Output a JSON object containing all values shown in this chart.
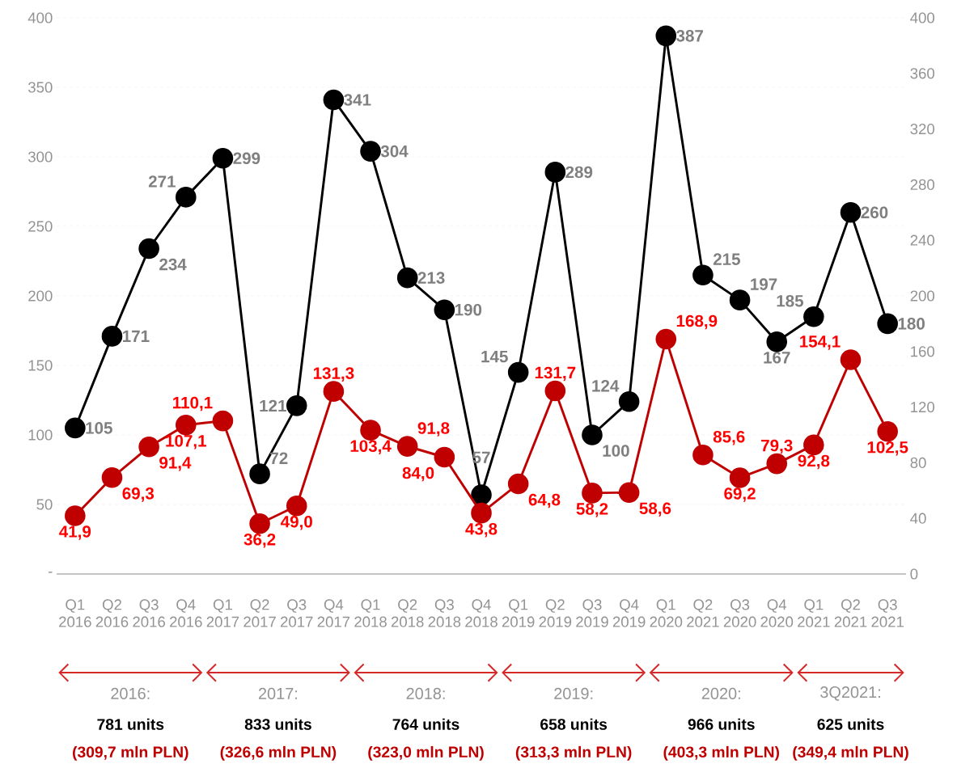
{
  "chart_data": {
    "type": "line",
    "categories": [
      "Q1 2016",
      "Q2 2016",
      "Q3 2016",
      "Q4 2016",
      "Q1 2017",
      "Q2 2017",
      "Q3 2017",
      "Q4 2017",
      "Q1 2018",
      "Q2 2018",
      "Q3 2018",
      "Q4 2018",
      "Q1 2019",
      "Q2 2019",
      "Q3 2019",
      "Q4 2019",
      "Q1 2020",
      "Q2 2021",
      "Q3 2020",
      "Q4 2020",
      "Q1 2021",
      "Q2 2021",
      "Q3 2021"
    ],
    "series": [
      {
        "color": "#000000",
        "values": [
          105,
          171,
          234,
          271,
          299,
          72,
          121,
          341,
          304,
          213,
          190,
          57,
          145,
          289,
          100,
          124,
          387,
          215,
          197,
          167,
          185,
          260,
          180
        ],
        "value_labels": [
          "105",
          "171",
          "234",
          "271",
          "299",
          "72",
          "121",
          "341",
          "304",
          "213",
          "190",
          "57",
          "145",
          "289",
          "100",
          "124",
          "387",
          "215",
          "197",
          "167",
          "185",
          "260",
          "180"
        ]
      },
      {
        "color": "#c00000",
        "axis": "y2",
        "values": [
          41.9,
          69.3,
          91.4,
          107.1,
          110.1,
          36.2,
          49.0,
          131.3,
          103.4,
          91.8,
          84.0,
          43.8,
          64.8,
          131.7,
          58.2,
          58.6,
          168.9,
          85.6,
          69.2,
          79.3,
          92.8,
          154.1,
          102.5
        ],
        "value_labels": [
          "41,9",
          "69,3",
          "91,4",
          "107,1",
          "110,1",
          "36,2",
          "49,0",
          "131,3",
          "103,4",
          "91,8",
          "84,0",
          "43,8",
          "64,8",
          "131,7",
          "58,2",
          "58,6",
          "168,9",
          "85,6",
          "69,2",
          "79,3",
          "92,8",
          "154,1",
          "102,5"
        ]
      }
    ],
    "ylim": [
      0,
      400
    ],
    "yticks": [
      {
        "value": 0,
        "label": "-"
      },
      50,
      100,
      150,
      200,
      250,
      300,
      350,
      400
    ],
    "y2lim": [
      0,
      400
    ],
    "y2ticks": [
      0,
      40,
      80,
      120,
      160,
      200,
      240,
      280,
      320,
      360,
      400
    ],
    "grid": "y",
    "marker": "circle",
    "line_style": "solid",
    "annotations": [
      "2016:",
      "781 units",
      "(309,7 mln PLN)",
      "2017:",
      "833 units",
      "(326,6 mln PLN)",
      "2018:",
      "764 units",
      "(323,0 mln PLN)",
      "2019:",
      "658 units",
      "(313,3 mln PLN)",
      "2020:",
      "966 units",
      "(403,3 mln PLN)",
      "3Q2021:",
      "625 units",
      "(349,4 mln PLN)"
    ]
  }
}
